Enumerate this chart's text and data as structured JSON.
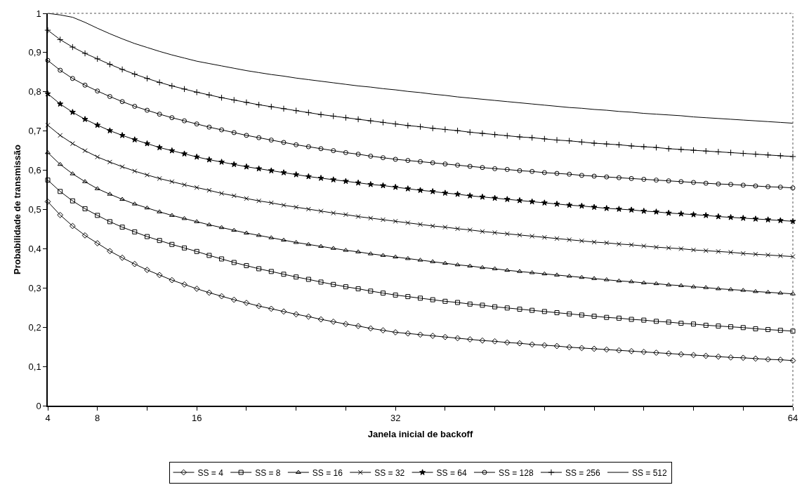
{
  "chart_data": {
    "type": "line",
    "xlabel": "Janela inicial de backoff",
    "ylabel": "Probabilidade de transmissão",
    "x": [
      4,
      5,
      6,
      7,
      8,
      9,
      10,
      11,
      12,
      13,
      14,
      15,
      16,
      17,
      18,
      19,
      20,
      21,
      22,
      23,
      24,
      25,
      26,
      27,
      28,
      29,
      30,
      31,
      32,
      33,
      34,
      35,
      36,
      37,
      38,
      39,
      40,
      41,
      42,
      43,
      44,
      45,
      46,
      47,
      48,
      49,
      50,
      51,
      52,
      53,
      54,
      55,
      56,
      57,
      58,
      59,
      60,
      61,
      62,
      63,
      64
    ],
    "xlim": [
      4,
      64
    ],
    "xticks": [
      4,
      8,
      {
        "value": 12,
        "label": null
      },
      16,
      {
        "value": 20,
        "label": null
      },
      {
        "value": 24,
        "label": null
      },
      {
        "value": 28,
        "label": null
      },
      32,
      {
        "value": 36,
        "label": null
      },
      {
        "value": 40,
        "label": null
      },
      {
        "value": 44,
        "label": null
      },
      {
        "value": 48,
        "label": null
      },
      {
        "value": 52,
        "label": null
      },
      {
        "value": 56,
        "label": null
      },
      {
        "value": 60,
        "label": null
      },
      64
    ],
    "ylim": [
      0,
      1
    ],
    "yticks": [
      0,
      {
        "value": 0.1,
        "label": "0,1"
      },
      {
        "value": 0.2,
        "label": "0,2"
      },
      {
        "value": 0.3,
        "label": "0,3"
      },
      {
        "value": 0.4,
        "label": "0,4"
      },
      {
        "value": 0.5,
        "label": "0,5"
      },
      {
        "value": 0.6,
        "label": "0,6"
      },
      {
        "value": 0.7,
        "label": "0,7"
      },
      {
        "value": 0.8,
        "label": "0,8"
      },
      {
        "value": 0.9,
        "label": "0,9"
      },
      1
    ],
    "legend": "bottom",
    "series": [
      {
        "name": "SS = 4",
        "color": "#000000",
        "marker": "diamond",
        "values": [
          0.52,
          0.486,
          0.458,
          0.434,
          0.414,
          0.394,
          0.377,
          0.361,
          0.346,
          0.333,
          0.32,
          0.309,
          0.298,
          0.288,
          0.279,
          0.27,
          0.262,
          0.254,
          0.247,
          0.24,
          0.233,
          0.227,
          0.22,
          0.214,
          0.208,
          0.203,
          0.197,
          0.192,
          0.187,
          0.184,
          0.181,
          0.178,
          0.175,
          0.172,
          0.169,
          0.166,
          0.164,
          0.161,
          0.159,
          0.156,
          0.154,
          0.152,
          0.149,
          0.147,
          0.145,
          0.143,
          0.141,
          0.139,
          0.137,
          0.135,
          0.133,
          0.131,
          0.129,
          0.127,
          0.125,
          0.123,
          0.122,
          0.12,
          0.118,
          0.117,
          0.115
        ]
      },
      {
        "name": "SS = 8",
        "color": "#000000",
        "marker": "square",
        "values": [
          0.575,
          0.546,
          0.522,
          0.502,
          0.485,
          0.469,
          0.455,
          0.443,
          0.431,
          0.421,
          0.411,
          0.402,
          0.393,
          0.383,
          0.374,
          0.365,
          0.357,
          0.349,
          0.342,
          0.335,
          0.328,
          0.322,
          0.315,
          0.309,
          0.303,
          0.298,
          0.292,
          0.287,
          0.282,
          0.278,
          0.274,
          0.27,
          0.266,
          0.263,
          0.259,
          0.256,
          0.252,
          0.249,
          0.246,
          0.243,
          0.24,
          0.237,
          0.234,
          0.231,
          0.228,
          0.225,
          0.223,
          0.22,
          0.218,
          0.215,
          0.213,
          0.21,
          0.208,
          0.205,
          0.203,
          0.201,
          0.199,
          0.196,
          0.194,
          0.192,
          0.19
        ]
      },
      {
        "name": "SS = 16",
        "color": "#000000",
        "marker": "triangle",
        "values": [
          0.645,
          0.615,
          0.591,
          0.571,
          0.553,
          0.539,
          0.526,
          0.514,
          0.504,
          0.494,
          0.485,
          0.477,
          0.469,
          0.461,
          0.454,
          0.447,
          0.44,
          0.434,
          0.428,
          0.422,
          0.416,
          0.411,
          0.406,
          0.401,
          0.396,
          0.392,
          0.387,
          0.383,
          0.379,
          0.375,
          0.371,
          0.367,
          0.363,
          0.359,
          0.356,
          0.352,
          0.349,
          0.345,
          0.342,
          0.339,
          0.336,
          0.333,
          0.33,
          0.327,
          0.324,
          0.321,
          0.318,
          0.316,
          0.313,
          0.311,
          0.308,
          0.306,
          0.303,
          0.301,
          0.298,
          0.296,
          0.294,
          0.291,
          0.289,
          0.287,
          0.285
        ]
      },
      {
        "name": "SS = 32",
        "color": "#000000",
        "marker": "cross",
        "values": [
          0.715,
          0.689,
          0.668,
          0.65,
          0.634,
          0.621,
          0.609,
          0.598,
          0.588,
          0.579,
          0.571,
          0.563,
          0.556,
          0.549,
          0.541,
          0.535,
          0.528,
          0.522,
          0.517,
          0.511,
          0.506,
          0.501,
          0.496,
          0.491,
          0.487,
          0.482,
          0.478,
          0.474,
          0.47,
          0.466,
          0.462,
          0.458,
          0.455,
          0.451,
          0.448,
          0.444,
          0.441,
          0.438,
          0.435,
          0.432,
          0.429,
          0.426,
          0.423,
          0.42,
          0.417,
          0.415,
          0.412,
          0.41,
          0.407,
          0.404,
          0.402,
          0.4,
          0.397,
          0.395,
          0.393,
          0.391,
          0.388,
          0.386,
          0.384,
          0.382,
          0.38
        ]
      },
      {
        "name": "SS = 64",
        "color": "#000000",
        "marker": "star",
        "values": [
          0.795,
          0.769,
          0.748,
          0.73,
          0.715,
          0.701,
          0.689,
          0.678,
          0.668,
          0.658,
          0.65,
          0.642,
          0.634,
          0.627,
          0.621,
          0.615,
          0.609,
          0.604,
          0.599,
          0.594,
          0.589,
          0.584,
          0.58,
          0.576,
          0.572,
          0.568,
          0.564,
          0.561,
          0.557,
          0.553,
          0.549,
          0.546,
          0.542,
          0.539,
          0.535,
          0.532,
          0.529,
          0.526,
          0.523,
          0.52,
          0.517,
          0.514,
          0.511,
          0.509,
          0.506,
          0.503,
          0.501,
          0.499,
          0.496,
          0.494,
          0.491,
          0.489,
          0.487,
          0.485,
          0.482,
          0.48,
          0.478,
          0.476,
          0.474,
          0.472,
          0.47
        ]
      },
      {
        "name": "SS = 128",
        "color": "#000000",
        "marker": "circle",
        "values": [
          0.88,
          0.855,
          0.834,
          0.817,
          0.802,
          0.788,
          0.775,
          0.763,
          0.753,
          0.743,
          0.734,
          0.726,
          0.718,
          0.71,
          0.703,
          0.696,
          0.689,
          0.683,
          0.677,
          0.671,
          0.665,
          0.66,
          0.655,
          0.65,
          0.645,
          0.641,
          0.636,
          0.632,
          0.628,
          0.625,
          0.622,
          0.619,
          0.616,
          0.613,
          0.61,
          0.607,
          0.604,
          0.602,
          0.599,
          0.597,
          0.594,
          0.592,
          0.59,
          0.587,
          0.585,
          0.583,
          0.581,
          0.579,
          0.577,
          0.575,
          0.573,
          0.571,
          0.569,
          0.567,
          0.565,
          0.564,
          0.562,
          0.56,
          0.558,
          0.557,
          0.555
        ]
      },
      {
        "name": "SS = 256",
        "color": "#000000",
        "marker": "plus",
        "values": [
          0.957,
          0.933,
          0.914,
          0.898,
          0.884,
          0.87,
          0.857,
          0.845,
          0.834,
          0.824,
          0.815,
          0.807,
          0.799,
          0.792,
          0.785,
          0.779,
          0.773,
          0.767,
          0.762,
          0.757,
          0.752,
          0.747,
          0.742,
          0.738,
          0.734,
          0.73,
          0.726,
          0.722,
          0.718,
          0.714,
          0.711,
          0.707,
          0.704,
          0.701,
          0.697,
          0.694,
          0.691,
          0.688,
          0.685,
          0.683,
          0.68,
          0.677,
          0.675,
          0.672,
          0.669,
          0.667,
          0.665,
          0.662,
          0.66,
          0.658,
          0.655,
          0.653,
          0.651,
          0.649,
          0.647,
          0.645,
          0.643,
          0.641,
          0.639,
          0.637,
          0.635
        ]
      },
      {
        "name": "SS = 512",
        "color": "#000000",
        "marker": "none",
        "values": [
          1.0,
          0.996,
          0.99,
          0.977,
          0.962,
          0.948,
          0.935,
          0.923,
          0.913,
          0.903,
          0.894,
          0.886,
          0.878,
          0.872,
          0.866,
          0.86,
          0.854,
          0.849,
          0.844,
          0.84,
          0.835,
          0.831,
          0.827,
          0.823,
          0.819,
          0.815,
          0.812,
          0.808,
          0.805,
          0.801,
          0.798,
          0.794,
          0.791,
          0.787,
          0.784,
          0.781,
          0.778,
          0.775,
          0.772,
          0.769,
          0.766,
          0.763,
          0.76,
          0.758,
          0.755,
          0.753,
          0.75,
          0.748,
          0.745,
          0.743,
          0.741,
          0.739,
          0.736,
          0.734,
          0.732,
          0.73,
          0.728,
          0.726,
          0.724,
          0.722,
          0.72
        ]
      }
    ]
  }
}
